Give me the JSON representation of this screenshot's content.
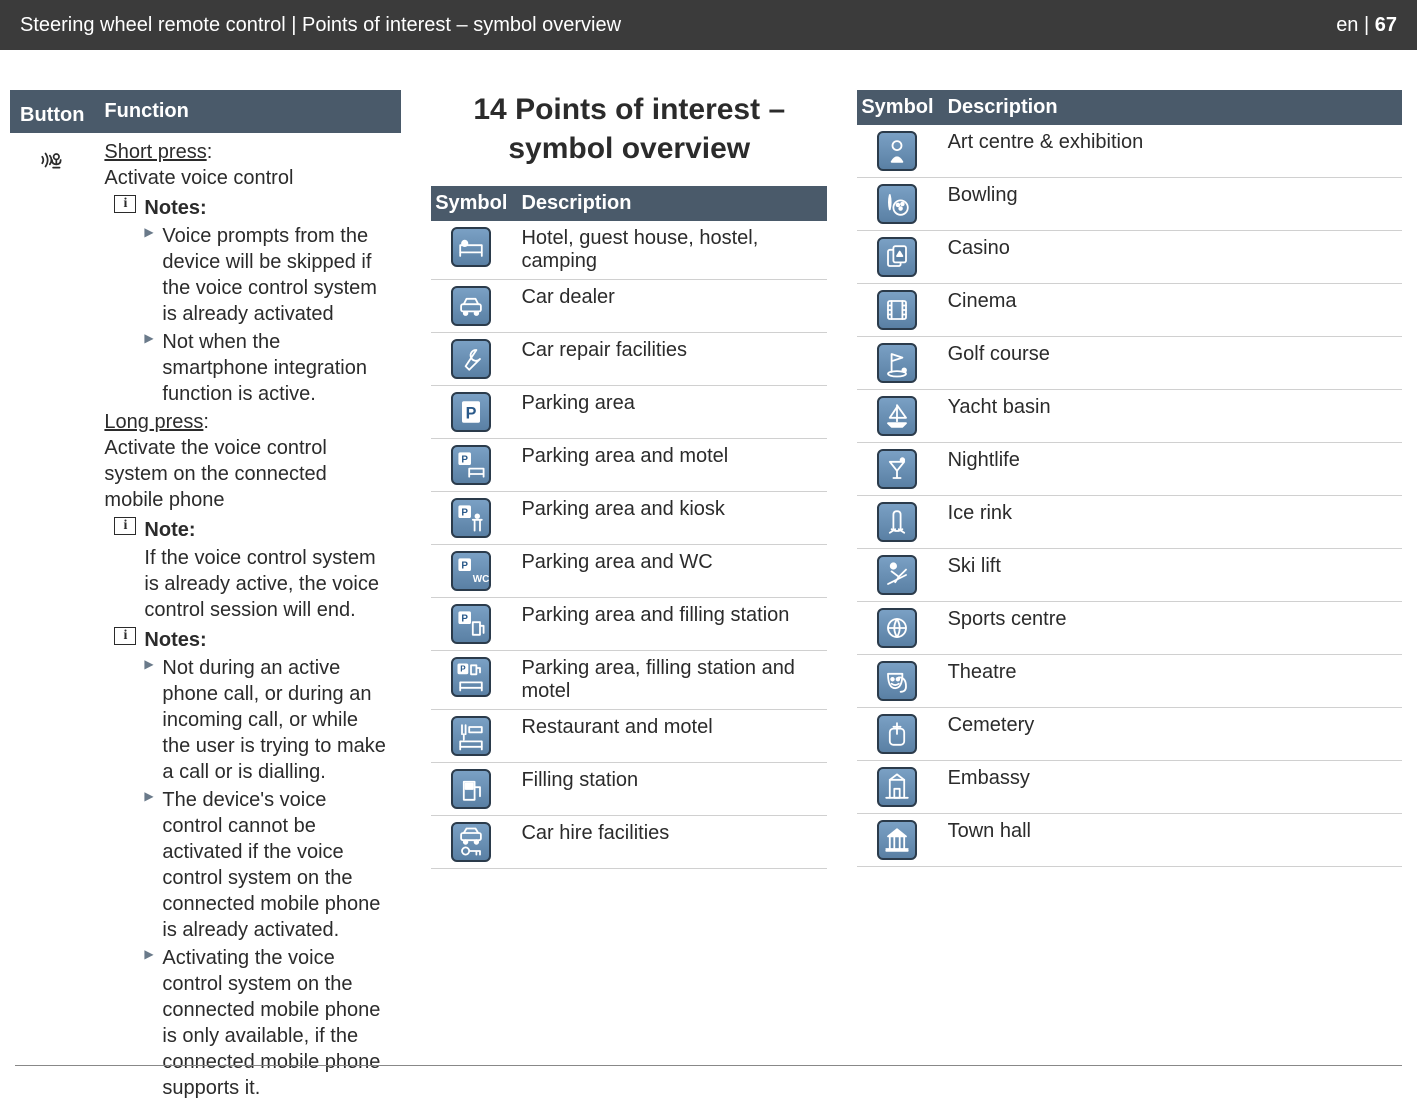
{
  "header": {
    "breadcrumb": "Steering wheel remote control | Points of interest – symbol overview",
    "lang": "en",
    "page": "67"
  },
  "button_table": {
    "headers": {
      "button": "Button",
      "function": "Function"
    },
    "row": {
      "short_press_label": "Short press",
      "short_press_text": "Activate voice control",
      "notes1_label": "Notes:",
      "notes1": [
        "Voice prompts from the device will be skipped if the voice control system is already activated",
        "Not when the smartphone integration function is active."
      ],
      "long_press_label": "Long press",
      "long_press_text": "Activate the voice control system on the connected mobile phone",
      "note2_label": "Note:",
      "note2_text": "If the voice control system is already active, the voice control session will end.",
      "notes3_label": "Notes:",
      "notes3": [
        "Not during an active phone call, or during an incoming call, or while the user is trying to make a call or is dialling.",
        "The device's voice control cannot be activated if the voice control system on the connected mobile phone is already activated.",
        "Activating the voice control system on the connected mobile phone is only available, if the connected mobile phone supports it."
      ]
    }
  },
  "section_title": "14 Points of interest – symbol overview",
  "poi_left": {
    "headers": {
      "symbol": "Symbol",
      "description": "Description"
    },
    "rows": [
      {
        "icon": "bed",
        "desc": "Hotel, guest house, hostel, camping"
      },
      {
        "icon": "car",
        "desc": "Car dealer"
      },
      {
        "icon": "wrench",
        "desc": "Car repair facilities"
      },
      {
        "icon": "parking",
        "desc": "Parking area"
      },
      {
        "icon": "p-bed",
        "desc": "Parking area and motel"
      },
      {
        "icon": "p-kiosk",
        "desc": "Parking area and kiosk"
      },
      {
        "icon": "p-wc",
        "desc": "Parking area and WC"
      },
      {
        "icon": "p-fuel",
        "desc": "Parking area and filling station"
      },
      {
        "icon": "p-fuel-bed",
        "desc": "Parking area, filling station and motel"
      },
      {
        "icon": "rest-bed",
        "desc": "Restaurant and motel"
      },
      {
        "icon": "fuel",
        "desc": "Filling station"
      },
      {
        "icon": "car-key",
        "desc": "Car hire facilities"
      }
    ]
  },
  "poi_right": {
    "headers": {
      "symbol": "Symbol",
      "description": "Description"
    },
    "rows": [
      {
        "icon": "art",
        "desc": "Art centre & exhibition"
      },
      {
        "icon": "bowling",
        "desc": "Bowling"
      },
      {
        "icon": "casino",
        "desc": "Casino"
      },
      {
        "icon": "cinema",
        "desc": "Cinema"
      },
      {
        "icon": "golf",
        "desc": "Golf course"
      },
      {
        "icon": "yacht",
        "desc": "Yacht basin"
      },
      {
        "icon": "nightlife",
        "desc": "Nightlife"
      },
      {
        "icon": "ice",
        "desc": "Ice rink"
      },
      {
        "icon": "ski",
        "desc": "Ski lift"
      },
      {
        "icon": "sports",
        "desc": "Sports centre"
      },
      {
        "icon": "theatre",
        "desc": "Theatre"
      },
      {
        "icon": "cemetery",
        "desc": "Cemetery"
      },
      {
        "icon": "embassy",
        "desc": "Embassy"
      },
      {
        "icon": "townhall",
        "desc": "Town hall"
      }
    ]
  },
  "colors": {
    "header_bg": "#3b3b3b",
    "th_bg": "#4a5a6a",
    "icon_border": "#2b3b4b"
  }
}
